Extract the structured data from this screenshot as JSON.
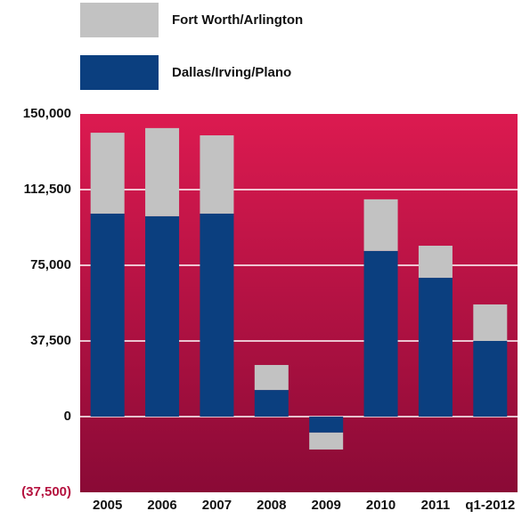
{
  "chart_data": {
    "type": "stacked-bar",
    "categories": [
      "2005",
      "2006",
      "2007",
      "2008",
      "2009",
      "2010",
      "2011",
      "q1-2012"
    ],
    "series": [
      {
        "name": "Dallas/Irving/Plano",
        "color": "#0b3f7f",
        "values": [
          100600,
          99300,
          100600,
          13200,
          -7900,
          82100,
          68800,
          37500
        ]
      },
      {
        "name": "Fort Worth/Arlington",
        "color": "#c2c2c2",
        "values": [
          40100,
          43700,
          38800,
          12400,
          -8400,
          25600,
          15900,
          18100
        ]
      }
    ],
    "ylim": [
      -37500,
      150000
    ],
    "yticks": [
      {
        "value": -37500,
        "label": "(37,500)"
      },
      0,
      {
        "value": 37500,
        "label": "37,500"
      },
      {
        "value": 75000,
        "label": "75,000"
      },
      {
        "value": 112500,
        "label": "112,500"
      },
      {
        "value": 150000,
        "label": "150,000"
      }
    ],
    "grid": true
  }
}
